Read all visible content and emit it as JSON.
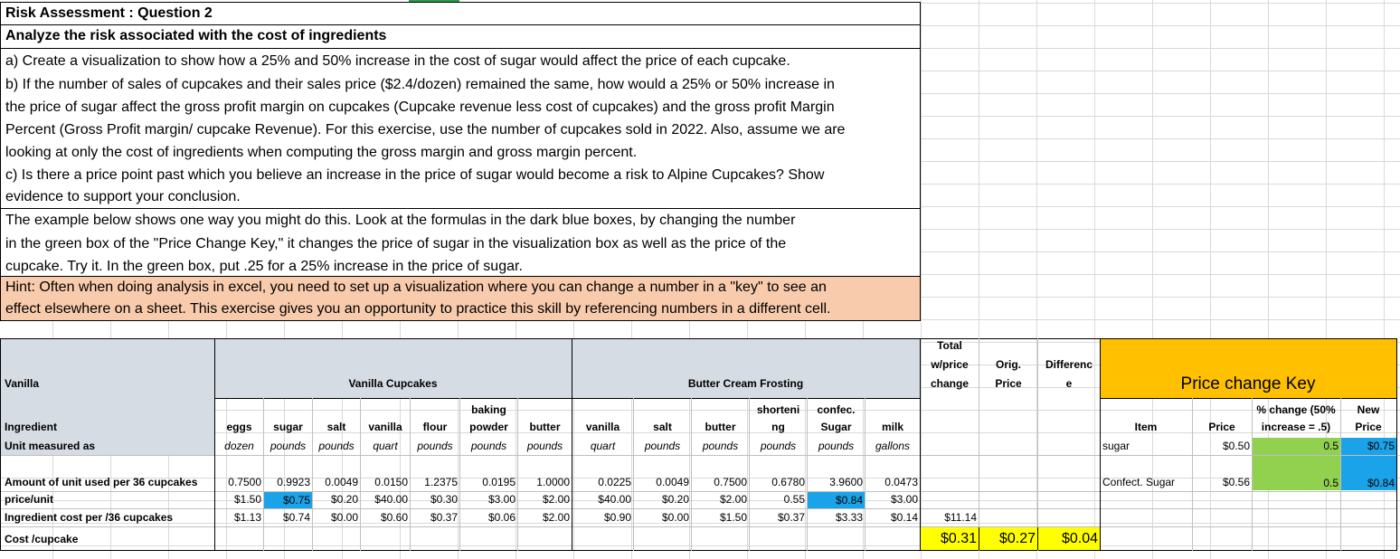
{
  "question": {
    "title": "Risk Assessment : Question 2",
    "subtitle": "Analyze the risk associated with the cost of ingredients",
    "lines": [
      "a)  Create a visualization to show how a 25% and 50% increase  in the cost of sugar would affect the price of each cupcake.",
      "b)  If the number of sales of cupcakes and their sales price ($2.4/dozen) remained the same, how would a 25% or 50%  increase in",
      "the price of sugar affect the gross profit margin on cupcakes (Cupcake revenue less cost of cupcakes) and the gross profit Margin",
      "Percent (Gross Profit margin/ cupcake Revenue).  For this exercise, use the number of cupcakes sold in 2022.  Also, assume we are",
      "looking at only the cost of ingredients when computing the gross margin and gross margin percent.",
      "c)  Is there a price point past which you believe an increase in the price of sugar would become a risk to Alpine Cupcakes?  Show",
      "evidence to support your conclusion."
    ],
    "example_lines": [
      "The example below shows one way you might do this.  Look at the formulas in the dark blue boxes, by changing the number",
      "in the green box of the \"Price Change Key,\" it changes the price of sugar in the visualization box as well as the price of the",
      "cupcake.  Try it.  In the green box, put .25 for a 25% increase in the price of sugar."
    ],
    "hint_lines": [
      "Hint:  Often when doing analysis in excel, you need to set up a visualization where you can change a number in a \"key\" to see an",
      "effect elsewhere on a sheet.  This exercise gives you an opportunity to practice this skill by referencing numbers in a different cell."
    ]
  },
  "table": {
    "vanilla_label": "Vanilla",
    "group_cupcakes": "Vanilla Cupcakes",
    "group_frosting": "Butter Cream Frosting",
    "total_header": [
      "Total",
      "w/price",
      "change"
    ],
    "orig_header": [
      "Orig.",
      "Price"
    ],
    "diff_header": [
      "Differenc",
      "e"
    ],
    "row_labels": {
      "ingredient": "Ingredient",
      "unit": "Unit measured as",
      "amount": "Amount of unit used per 36 cupcakes",
      "price": "price/unit",
      "cost36": "Ingredient cost per /36 cupcakes",
      "cupcake": "Cost /cupcake"
    },
    "columns": [
      {
        "name1": "",
        "name2": "eggs",
        "unit": "dozen",
        "amount": "0.7500",
        "price": "$1.50",
        "cost": "$1.13"
      },
      {
        "name1": "",
        "name2": "sugar",
        "unit": "pounds",
        "amount": "0.9923",
        "price": "$0.75",
        "cost": "$0.74"
      },
      {
        "name1": "",
        "name2": "salt",
        "unit": "pounds",
        "amount": "0.0049",
        "price": "$0.20",
        "cost": "$0.00"
      },
      {
        "name1": "",
        "name2": "vanilla",
        "unit": "quart",
        "amount": "0.0150",
        "price": "$40.00",
        "cost": "$0.60"
      },
      {
        "name1": "",
        "name2": "flour",
        "unit": "pounds",
        "amount": "1.2375",
        "price": "$0.30",
        "cost": "$0.37"
      },
      {
        "name1": "baking",
        "name2": "powder",
        "unit": "pounds",
        "amount": "0.0195",
        "price": "$3.00",
        "cost": "$0.06"
      },
      {
        "name1": "",
        "name2": "butter",
        "unit": "pounds",
        "amount": "1.0000",
        "price": "$2.00",
        "cost": "$2.00"
      },
      {
        "name1": "",
        "name2": "vanilla",
        "unit": "quart",
        "amount": "0.0225",
        "price": "$40.00",
        "cost": "$0.90"
      },
      {
        "name1": "",
        "name2": "salt",
        "unit": "pounds",
        "amount": "0.0049",
        "price": "$0.20",
        "cost": "$0.00"
      },
      {
        "name1": "",
        "name2": "butter",
        "unit": "pounds",
        "amount": "0.7500",
        "price": "$2.00",
        "cost": "$1.50"
      },
      {
        "name1": "shorteni",
        "name2": "ng",
        "unit": "pounds",
        "amount": "0.6780",
        "price": "0.55",
        "cost": "$0.37"
      },
      {
        "name1": "confec.",
        "name2": "Sugar",
        "unit": "pounds",
        "amount": "3.9600",
        "price": "$0.84",
        "cost": "$3.33"
      },
      {
        "name1": "",
        "name2": "milk",
        "unit": "gallons",
        "amount": "0.0473",
        "price": "$3.00",
        "cost": "$0.14"
      }
    ],
    "total_cost36": "$11.14",
    "total_cupcake": "$0.31",
    "orig_cupcake": "$0.27",
    "diff_cupcake": "$0.04"
  },
  "key": {
    "title": "Price change Key",
    "header_item": "Item",
    "header_price": "Price",
    "header_change": [
      "% change (50%",
      "increase = .5)"
    ],
    "header_new": [
      "New",
      "Price"
    ],
    "rows": [
      {
        "item": "sugar",
        "price": "$0.50",
        "change": "0.5",
        "new": "$0.75"
      },
      {
        "item": "Confect. Sugar",
        "price": "$0.56",
        "change": "0.5",
        "new": "$0.84"
      }
    ]
  },
  "colors": {
    "hint_bg": "#f8cbad",
    "formula_blue": "#1aa3e8",
    "input_green": "#92d050",
    "highlight_yellow": "#ffff00",
    "key_orange": "#ffc000",
    "header_fill": "#d6dce4"
  }
}
